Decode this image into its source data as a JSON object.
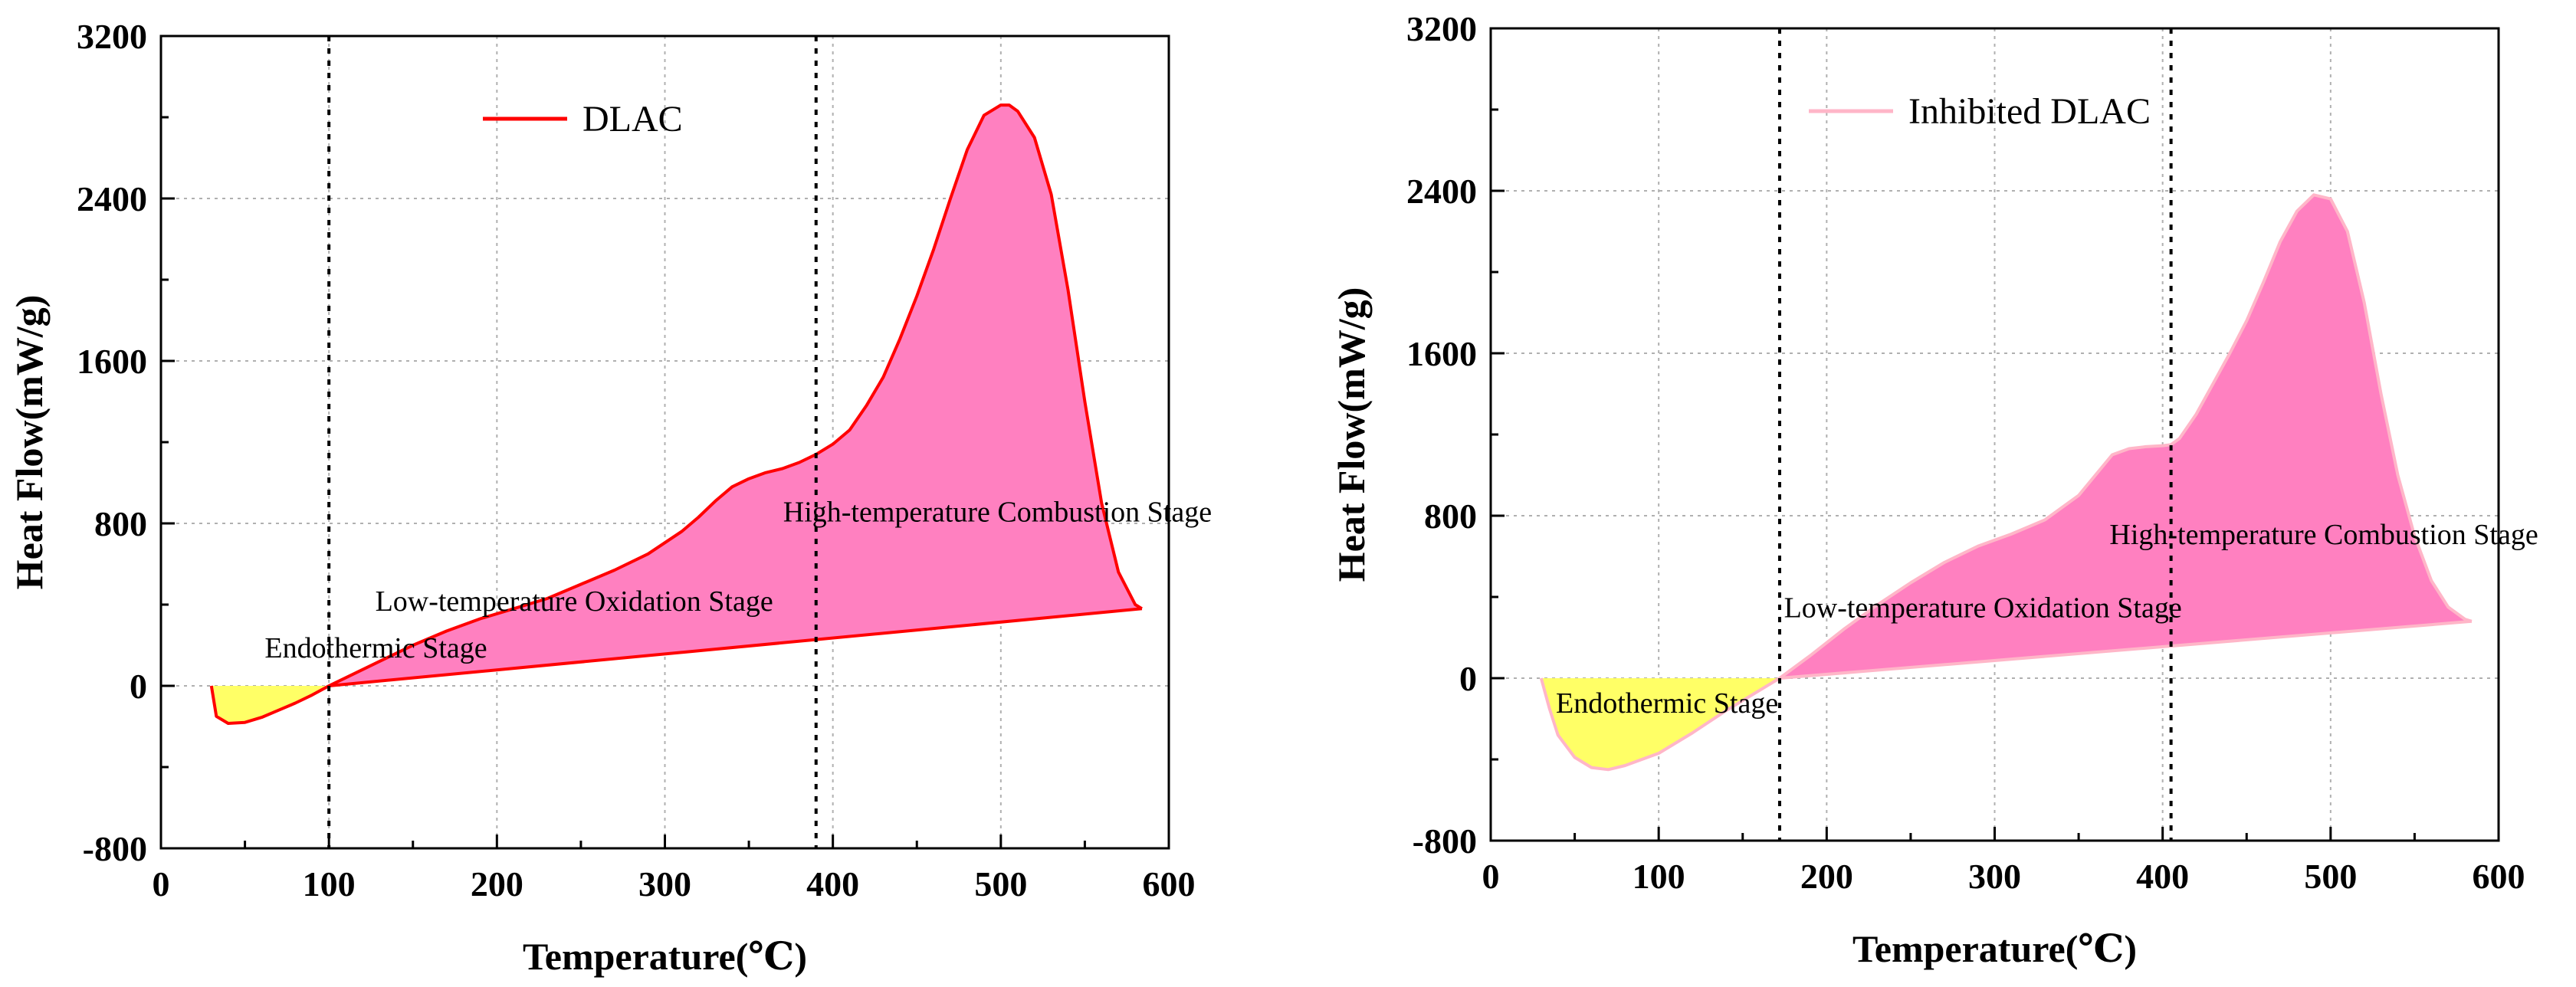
{
  "chart_data": [
    {
      "type": "area",
      "xlabel": "Temperature(℃)",
      "ylabel": "Heat Flow(mW/g)",
      "xlim": [
        0,
        600
      ],
      "ylim": [
        -800,
        3200
      ],
      "xticks": [
        0,
        100,
        200,
        300,
        400,
        500,
        600
      ],
      "yticks": [
        -800,
        0,
        800,
        1600,
        2400,
        3200
      ],
      "grid": true,
      "legend_position": "top-center",
      "series": [
        {
          "name": "DLAC",
          "color": "#ff0000",
          "upper_curve": {
            "x": [
              30,
              33,
              40,
              50,
              60,
              70,
              80,
              90,
              100,
              110,
              130,
              150,
              170,
              190,
              210,
              230,
              250,
              270,
              290,
              310,
              320,
              330,
              340,
              350,
              360,
              370,
              380,
              390,
              400,
              410,
              420,
              430,
              440,
              450,
              460,
              470,
              480,
              490,
              500,
              505,
              510,
              520,
              530,
              540,
              550,
              560,
              570,
              580,
              584
            ],
            "y": [
              0,
              -150,
              -185,
              -180,
              -155,
              -120,
              -85,
              -45,
              0,
              40,
              120,
              200,
              270,
              330,
              380,
              430,
              500,
              570,
              650,
              760,
              830,
              910,
              980,
              1020,
              1050,
              1070,
              1100,
              1140,
              1190,
              1260,
              1380,
              1520,
              1710,
              1920,
              2150,
              2400,
              2640,
              2810,
              2860,
              2860,
              2830,
              2700,
              2420,
              1950,
              1400,
              900,
              560,
              400,
              380
            ]
          },
          "baseline": {
            "x": [
              100,
              584
            ],
            "y": [
              0,
              380
            ]
          }
        }
      ],
      "dividers_x": [
        100,
        390
      ],
      "fill_colors": {
        "endothermic": "#ffff66",
        "oxidation": "#ff80c0"
      },
      "annotations": [
        {
          "text": "Endothermic Stage",
          "x": 128,
          "y": 140
        },
        {
          "text": "Low-temperature Oxidation Stage",
          "x": 246,
          "y": 370
        },
        {
          "text": "High-temperature Combustion Stage",
          "x": 498,
          "y": 810
        }
      ]
    },
    {
      "type": "area",
      "xlabel": "Temperature(℃)",
      "ylabel": "Heat Flow(mW/g)",
      "xlim": [
        0,
        600
      ],
      "ylim": [
        -800,
        3200
      ],
      "xticks": [
        0,
        100,
        200,
        300,
        400,
        500,
        600
      ],
      "yticks": [
        -800,
        0,
        800,
        1600,
        2400,
        3200
      ],
      "grid": true,
      "legend_position": "top-center",
      "series": [
        {
          "name": "Inhibited DLAC",
          "color": "#ffb6c8",
          "upper_curve": {
            "x": [
              30,
              35,
              40,
              50,
              60,
              70,
              80,
              100,
              120,
              140,
              160,
              172,
              190,
              210,
              230,
              250,
              270,
              290,
              310,
              330,
              350,
              360,
              370,
              380,
              390,
              400,
              405,
              410,
              420,
              430,
              440,
              450,
              460,
              470,
              480,
              490,
              500,
              510,
              520,
              530,
              540,
              550,
              560,
              570,
              580,
              584
            ],
            "y": [
              0,
              -150,
              -280,
              -390,
              -440,
              -450,
              -430,
              -370,
              -270,
              -160,
              -60,
              0,
              110,
              240,
              360,
              470,
              570,
              650,
              710,
              780,
              900,
              1000,
              1100,
              1130,
              1140,
              1145,
              1150,
              1180,
              1300,
              1450,
              1600,
              1760,
              1950,
              2150,
              2300,
              2380,
              2360,
              2200,
              1850,
              1400,
              1000,
              700,
              480,
              350,
              290,
              280
            ]
          },
          "baseline": {
            "x": [
              172,
              584
            ],
            "y": [
              0,
              280
            ]
          }
        }
      ],
      "dividers_x": [
        172,
        405
      ],
      "fill_colors": {
        "endothermic": "#ffff66",
        "oxidation": "#ff80c0"
      },
      "annotations": [
        {
          "text": "Endothermic Stage",
          "x": 105,
          "y": -170
        },
        {
          "text": "Low-temperature Oxidation Stage",
          "x": 293,
          "y": 300
        },
        {
          "text": "High-temperature Combustion Stage",
          "x": 496,
          "y": 660
        }
      ]
    }
  ]
}
